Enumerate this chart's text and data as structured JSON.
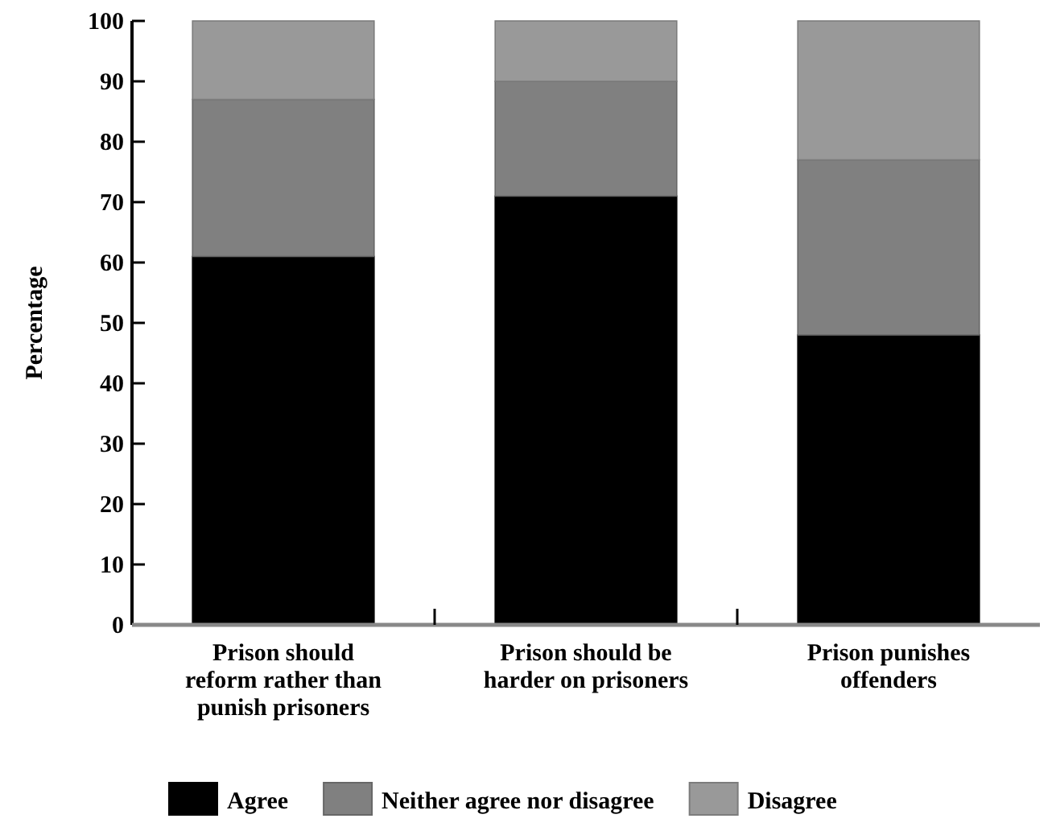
{
  "chart_data": {
    "type": "bar",
    "stacked": true,
    "ylabel": "Percentage",
    "categories": [
      "Prison should reform rather than punish prisoners",
      "Prison should be harder on prisoners",
      "Prison punishes offenders"
    ],
    "series": [
      {
        "name": "Agree",
        "color": "#000000",
        "values": [
          61,
          71,
          48
        ]
      },
      {
        "name": "Neither agree nor disagree",
        "color": "#808080",
        "values": [
          26,
          19,
          29
        ]
      },
      {
        "name": "Disagree",
        "color": "#999999",
        "values": [
          13,
          10,
          23
        ]
      }
    ],
    "ylim": [
      0,
      100
    ],
    "yticks": [
      0,
      10,
      20,
      30,
      40,
      50,
      60,
      70,
      80,
      90,
      100
    ],
    "legend": "bottom",
    "grid": false
  }
}
